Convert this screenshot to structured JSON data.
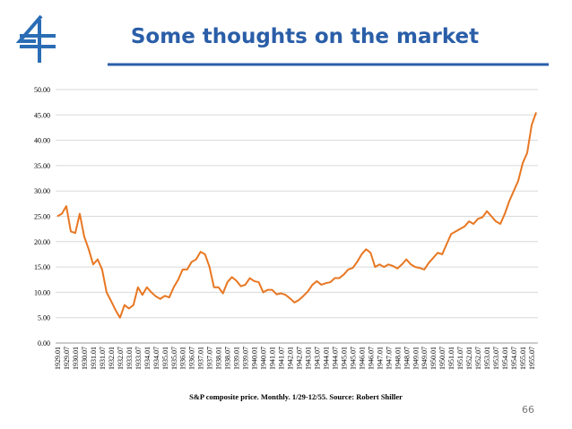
{
  "slide": {
    "title": "Some thoughts on the market",
    "page_number": "66"
  },
  "chart_data": {
    "type": "line",
    "note": "S&P composite price. Monthly. 1/29-12/55. Source: Robert Shiller",
    "categories": [
      "1929.01",
      null,
      "1929.07",
      null,
      "1930.01",
      null,
      "1930.07",
      null,
      "1931.01",
      null,
      "1931.07",
      null,
      "1932.01",
      null,
      "1932.07",
      null,
      "1933.01",
      null,
      "1933.07",
      null,
      "1934.01",
      null,
      "1934.07",
      null,
      "1935.01",
      null,
      "1935.07",
      null,
      "1936.01",
      null,
      "1936.07",
      null,
      "1937.01",
      null,
      "1937.07",
      null,
      "1938.01",
      null,
      "1938.07",
      null,
      "1939.01",
      null,
      "1939.07",
      null,
      "1940.01",
      null,
      "1940.07",
      null,
      "1941.01",
      null,
      "1941.07",
      null,
      "1942.01",
      null,
      "1942.07",
      null,
      "1943.01",
      null,
      "1943.07",
      null,
      "1944.01",
      null,
      "1944.07",
      null,
      "1945.01",
      null,
      "1945.07",
      null,
      "1946.01",
      null,
      "1946.07",
      null,
      "1947.01",
      null,
      "1947.07",
      null,
      "1948.01",
      null,
      "1948.07",
      null,
      "1949.01",
      null,
      "1949.07",
      null,
      "1950.01",
      null,
      "1950.07",
      null,
      "1951.01",
      null,
      "1951.07",
      null,
      "1952.01",
      null,
      "1952.07",
      null,
      "1953.01",
      null,
      "1953.07",
      null,
      "1954.01",
      null,
      "1954.07",
      null,
      "1955.01",
      null,
      "1955.07",
      null
    ],
    "series": [
      {
        "color": "#e87722",
        "values": [
          25,
          25.5,
          27,
          22,
          21.7,
          25.5,
          21,
          18.5,
          15.5,
          16.5,
          14.5,
          10,
          8.3,
          6.5,
          5,
          7.5,
          6.8,
          7.5,
          11,
          9.5,
          11,
          10,
          9.2,
          8.7,
          9.3,
          9,
          11,
          12.5,
          14.5,
          14.5,
          16,
          16.5,
          18,
          17.5,
          15,
          11,
          11,
          9.8,
          12,
          13,
          12.3,
          11.2,
          11.5,
          12.8,
          12.2,
          12,
          10,
          10.5,
          10.5,
          9.6,
          9.8,
          9.5,
          8.8,
          8,
          8.5,
          9.3,
          10.2,
          11.5,
          12.2,
          11.5,
          11.8,
          12,
          12.8,
          12.8,
          13.5,
          14.5,
          14.8,
          16,
          17.5,
          18.5,
          17.8,
          15,
          15.5,
          15,
          15.5,
          15.2,
          14.7,
          15.5,
          16.5,
          15.5,
          15,
          14.8,
          14.5,
          15.8,
          16.8,
          17.8,
          17.5,
          19.5,
          21.5,
          22,
          22.5,
          23,
          24,
          23.5,
          24.5,
          24.8,
          26,
          25,
          24,
          23.5,
          25.5,
          28,
          30,
          32,
          35.5,
          37.5,
          43,
          45.5
        ]
      }
    ],
    "ylim": [
      0,
      50
    ],
    "yticks": [
      {
        "value": 0,
        "label": "0.00"
      },
      {
        "value": 5,
        "label": "5.00"
      },
      {
        "value": 10,
        "label": "10.00"
      },
      {
        "value": 15,
        "label": "15.00"
      },
      {
        "value": 20,
        "label": "20.00"
      },
      {
        "value": 25,
        "label": "25.00"
      },
      {
        "value": 30,
        "label": "30.00"
      },
      {
        "value": 35,
        "label": "35.00"
      },
      {
        "value": 40,
        "label": "40.00"
      },
      {
        "value": 45,
        "label": "45.00"
      },
      {
        "value": 50,
        "label": "50.00"
      }
    ],
    "grid": true
  }
}
